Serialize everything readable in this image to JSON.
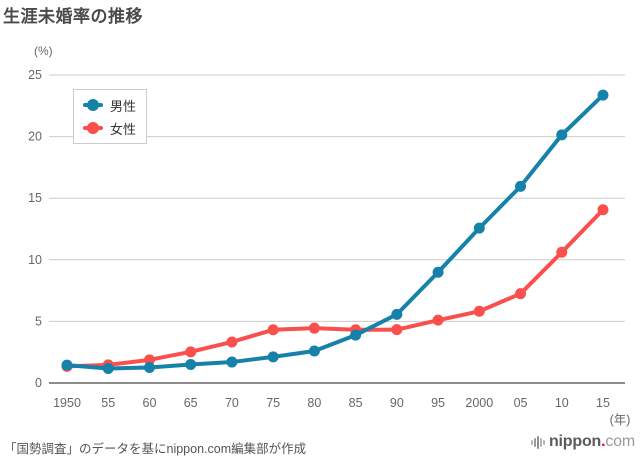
{
  "title": "生涯未婚率の推移",
  "chart_data": {
    "type": "line",
    "title": "生涯未婚率の推移",
    "unit_label": "(%)",
    "x_unit_label": "(年)",
    "categories": [
      "1950",
      "55",
      "60",
      "65",
      "70",
      "75",
      "80",
      "85",
      "90",
      "95",
      "2000",
      "05",
      "10",
      "15"
    ],
    "y_ticks": [
      0,
      5,
      10,
      15,
      20,
      25
    ],
    "ylim": [
      0,
      25
    ],
    "grid": true,
    "legend_position": "top-left",
    "series": [
      {
        "key": "male",
        "name": "男性",
        "color": "#1681a9",
        "values": [
          1.45,
          1.18,
          1.26,
          1.5,
          1.7,
          2.12,
          2.6,
          3.89,
          5.57,
          8.99,
          12.57,
          15.96,
          20.14,
          23.37
        ]
      },
      {
        "key": "female",
        "name": "女性",
        "color": "#f9504d",
        "values": [
          1.35,
          1.47,
          1.88,
          2.53,
          3.33,
          4.32,
          4.45,
          4.32,
          4.33,
          5.1,
          5.82,
          7.25,
          10.61,
          14.06
        ]
      }
    ]
  },
  "footer": {
    "source_note": "「国勢調査」のデータを基にnippon.com編集部が作成"
  },
  "logo": {
    "part_bold": "nippon",
    "part_dot": ".",
    "part_light": "com"
  },
  "colors": {
    "male": "#1681a9",
    "female": "#f9504d",
    "grid": "#cccccc",
    "axis": "#8c8c8c",
    "tick_text": "#666666",
    "title_text": "#4a4a4a"
  }
}
